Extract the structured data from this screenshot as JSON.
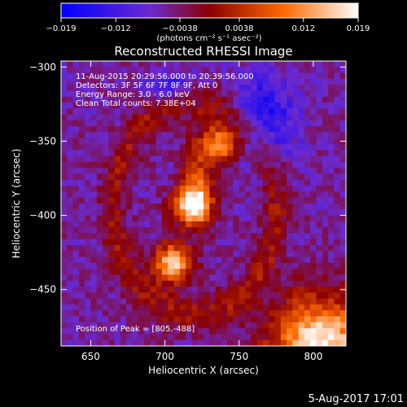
{
  "chart_data": {
    "type": "heatmap",
    "title": "Reconstructed RHESSI Image",
    "xlabel": "Heliocentric X (arcsec)",
    "ylabel": "Heliocentric Y (arcsec)",
    "xlim": [
      630,
      822
    ],
    "ylim": [
      -488,
      -296
    ],
    "x_ticks": [
      650,
      700,
      750,
      800
    ],
    "y_ticks": [
      -300,
      -350,
      -400,
      -450
    ],
    "x_tick_labels": [
      "650",
      "700",
      "750",
      "800"
    ],
    "y_tick_labels": [
      "−300",
      "−350",
      "−400",
      "−450"
    ],
    "colorbar": {
      "range": [
        -0.019,
        0.019
      ],
      "ticks": [
        -0.019,
        -0.012,
        -0.0038,
        0.0038,
        0.012,
        0.019
      ],
      "tick_labels": [
        "−0.019",
        "−0.012",
        "−0.0038",
        "0.0038",
        "0.012",
        "0.019"
      ],
      "unit_label": "(photons cm⁻² s⁻¹ asec⁻²)",
      "colors": [
        "#0000ff",
        "#6a2ad0",
        "#8a0000",
        "#ff6a00",
        "#ffffff"
      ]
    },
    "annotations": [
      "11-Aug-2015 20:29:56.000 to 20:39:56.000",
      "Detectors: 3F 5F 6F 7F 8F 9F, Att 0",
      "Energy Range: 3.0 - 6.0 keV",
      "Clean     Total counts: 7.38E+04"
    ],
    "peak_label": "Position of Peak = [805,-488]",
    "sources": [
      {
        "x": 718,
        "y": -393,
        "value": 0.017
      },
      {
        "x": 705,
        "y": -432,
        "value": 0.016
      },
      {
        "x": 738,
        "y": -352,
        "value": 0.013
      },
      {
        "x": 805,
        "y": -488,
        "value": 0.019
      }
    ]
  },
  "footer": {
    "date": "5-Aug-2017 17:01"
  }
}
